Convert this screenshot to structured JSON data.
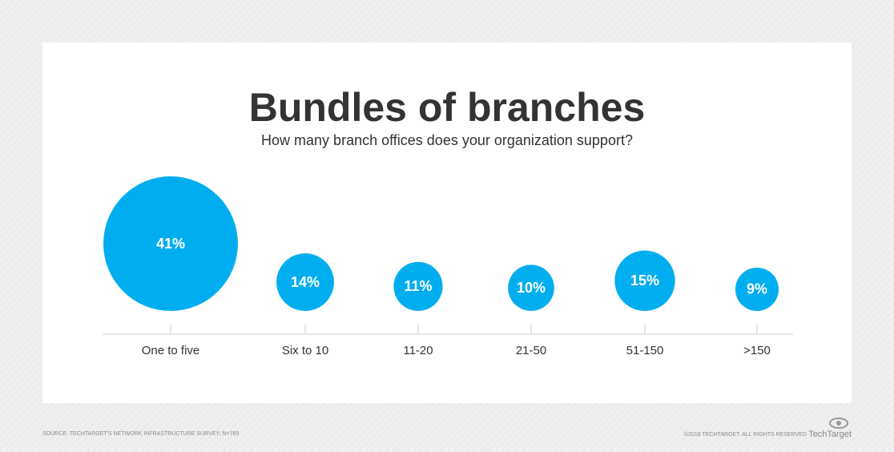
{
  "chart_data": {
    "type": "bubble",
    "title": "Bundles of branches",
    "subtitle": "How many branch offices does your organization support?",
    "categories": [
      "One to five",
      "Six to 10",
      "11-20",
      "21-50",
      "51-150",
      ">150"
    ],
    "values": [
      41,
      14,
      11,
      10,
      15,
      9
    ],
    "value_labels": [
      "41%",
      "14%",
      "11%",
      "10%",
      "15%",
      "9%"
    ],
    "color": "#00aeef",
    "source": "SOURCE: TECHTARGET'S NETWORK INFRASTRUCTURE SURVEY; N=769",
    "copyright": "©2018 TECHTARGET. ALL RIGHTS RESERVED",
    "brand": "TechTarget"
  }
}
